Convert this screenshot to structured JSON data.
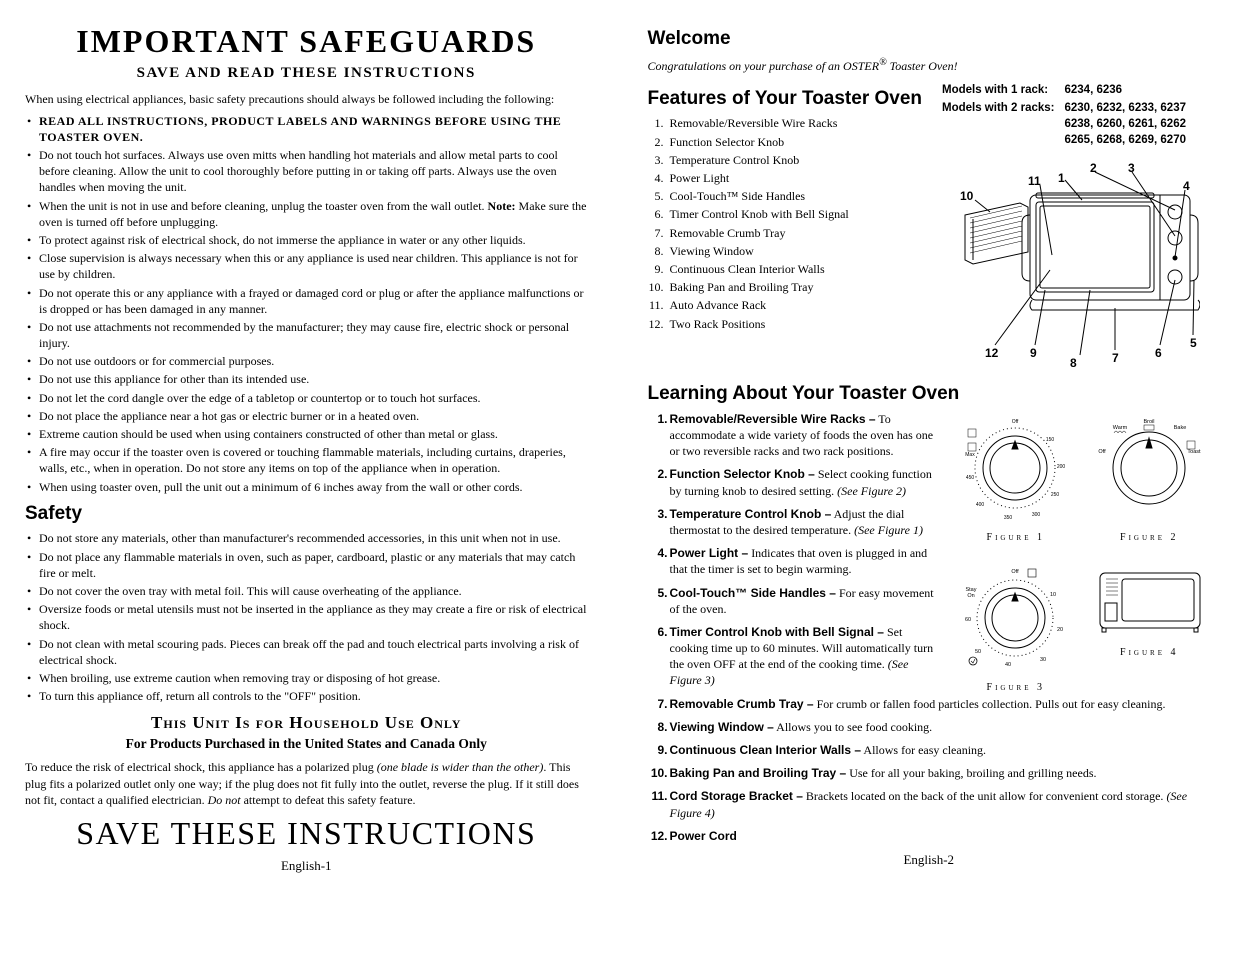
{
  "left": {
    "title": "IMPORTANT SAFEGUARDS",
    "subtitle": "SAVE AND READ THESE INSTRUCTIONS",
    "intro": "When using electrical appliances, basic safety precautions should always be followed including the following:",
    "readall": "READ ALL INSTRUCTIONS, PRODUCT LABELS AND WARNINGS BEFORE USING THE TOASTER OVEN.",
    "bullets": [
      "Do not touch hot surfaces. Always use oven mitts when handling hot materials and allow metal parts to cool before cleaning. Allow the unit to cool thoroughly before putting in or taking off parts. Always use the oven handles when moving the unit.",
      "When the unit is not in use and before cleaning, unplug the toaster oven from the wall outlet. <b>Note:</b> Make sure the oven is turned off before unplugging.",
      "To protect against risk of electrical shock, do not immerse the appliance in water or any other liquids.",
      "Close supervision is always necessary when this or any appliance is used near children. This appliance is not for use by children.",
      "Do not operate this or any appliance with a frayed or damaged cord or plug or after the appliance malfunctions or is dropped or has been damaged in any manner.",
      "Do not use attachments not recommended by the manufacturer; they may cause fire, electric shock or personal injury.",
      "Do not use outdoors or for commercial purposes.",
      "Do not use this appliance for other than its intended use.",
      "Do not let the cord dangle over the edge of a tabletop or countertop or to touch hot surfaces.",
      "Do not place the appliance near a hot gas or electric burner or in a heated oven.",
      "Extreme caution should be used when using containers constructed of other than metal or glass.",
      "A fire may occur if the toaster oven is covered or touching flammable materials, including curtains, draperies, walls, etc., when in operation. Do not store any items on top of the appliance when in operation.",
      "When using toaster oven, pull the unit out a minimum of 6 inches away from the wall or other cords."
    ],
    "safety_heading": "Safety",
    "safety_bullets": [
      "Do not store any materials, other than manufacturer's recommended accessories, in this unit when not in use.",
      "Do not place any flammable materials in oven, such as paper, cardboard, plastic or any materials that may catch fire or melt.",
      "Do not cover the oven tray with metal foil. This will cause overheating of the appliance.",
      "Oversize foods or metal utensils must not be inserted in the appliance as they may create a fire or risk of electrical shock.",
      "Do not clean with metal scouring pads. Pieces can break off the pad and touch electrical parts involving a risk of electrical shock.",
      "When broiling, use extreme caution when removing tray or disposing of hot grease.",
      "To turn this appliance off, return all controls to the \"OFF\" position."
    ],
    "household": "This Unit Is for Household Use Only",
    "products": "For Products Purchased in the United States and Canada Only",
    "polarized": "To reduce the risk of electrical shock, this appliance has a polarized plug <i>(one blade is wider than the other)</i>. This plug fits a polarized outlet only one way; if the plug does not fit fully into the outlet, reverse the plug. If it still does not fit, contact a qualified electrician. <i>Do not</i> attempt to defeat this safety feature.",
    "save": "SAVE THESE INSTRUCTIONS",
    "pagenum": "English-1"
  },
  "right": {
    "welcome_h": "Welcome",
    "welcome_t": "Congratulations on your purchase of an OSTER<sup>®</sup> Toaster Oven!",
    "features_h": "Features of Your Toaster Oven",
    "features": [
      "Removable/Reversible Wire Racks",
      "Function Selector Knob",
      "Temperature Control Knob",
      "Power Light",
      "Cool-Touch™ Side Handles",
      "Timer Control Knob with Bell Signal",
      "Removable Crumb Tray",
      "Viewing Window",
      "Continuous Clean Interior Walls",
      "Baking Pan and Broiling Tray",
      "Auto Advance Rack",
      "Two Rack Positions"
    ],
    "models1_label": "Models with 1 rack:",
    "models1_vals": "6234, 6236",
    "models2_label": "Models with 2 racks:",
    "models2_vals": "6230, 6232, 6233, 6237 6238, 6260, 6261, 6262 6265, 6268, 6269, 6270",
    "learning_h": "Learning About Your Toaster Oven",
    "learning": [
      {
        "t": "Removable/Reversible Wire Racks –",
        "d": "To accommodate a wide variety of foods the oven has one or two reversible racks and two rack positions."
      },
      {
        "t": "Function Selector Knob –",
        "d": "Select cooking function by turning knob to desired setting. <i>(See Figure 2)</i>"
      },
      {
        "t": "Temperature Control Knob –",
        "d": "Adjust the dial thermostat to the desired temperature. <i>(See Figure 1)</i>"
      },
      {
        "t": "Power Light –",
        "d": "Indicates that oven is plugged in and that the timer is set to begin warming."
      },
      {
        "t": "Cool-Touch™ Side Handles –",
        "d": "For easy movement of the oven."
      },
      {
        "t": "Timer Control Knob with Bell Signal –",
        "d": "Set cooking time up to 60 minutes. Will automatically turn the oven OFF at the end of the cooking time. <i>(See Figure 3)</i>"
      },
      {
        "t": "Removable Crumb Tray –",
        "d": "For crumb or fallen food particles collection. Pulls out for easy cleaning."
      },
      {
        "t": "Viewing Window –",
        "d": "Allows you to see food cooking."
      },
      {
        "t": "Continuous Clean Interior Walls –",
        "d": "Allows for easy cleaning."
      },
      {
        "t": "Baking Pan and Broiling Tray –",
        "d": "Use for all your baking, broiling and grilling needs."
      },
      {
        "t": "Cord Storage Bracket –",
        "d": "Brackets located on the back of the unit allow for convenient cord storage. <i>(See Figure 4)</i>"
      },
      {
        "t": "Power Cord",
        "d": ""
      }
    ],
    "fig1": "Figure 1",
    "fig2": "Figure 2",
    "fig3": "Figure 3",
    "fig4": "Figure 4",
    "pagenum": "English-2",
    "diagram_labels": [
      "1",
      "2",
      "3",
      "4",
      "5",
      "6",
      "7",
      "8",
      "9",
      "10",
      "11",
      "12"
    ],
    "temp_labels": {
      "off": "Off",
      "max": "Max",
      "150": "150",
      "200": "200",
      "250": "250",
      "300": "300",
      "350": "350",
      "400": "400",
      "450": "450"
    },
    "func_labels": {
      "off": "Off",
      "warm": "Warm",
      "broil": "Broil",
      "bake": "Bake",
      "toast": "Toast"
    },
    "timer_labels": {
      "off": "Off",
      "stay": "Stay\nOn",
      "10": "10",
      "20": "20",
      "30": "30",
      "40": "40",
      "50": "50",
      "60": "60"
    }
  }
}
